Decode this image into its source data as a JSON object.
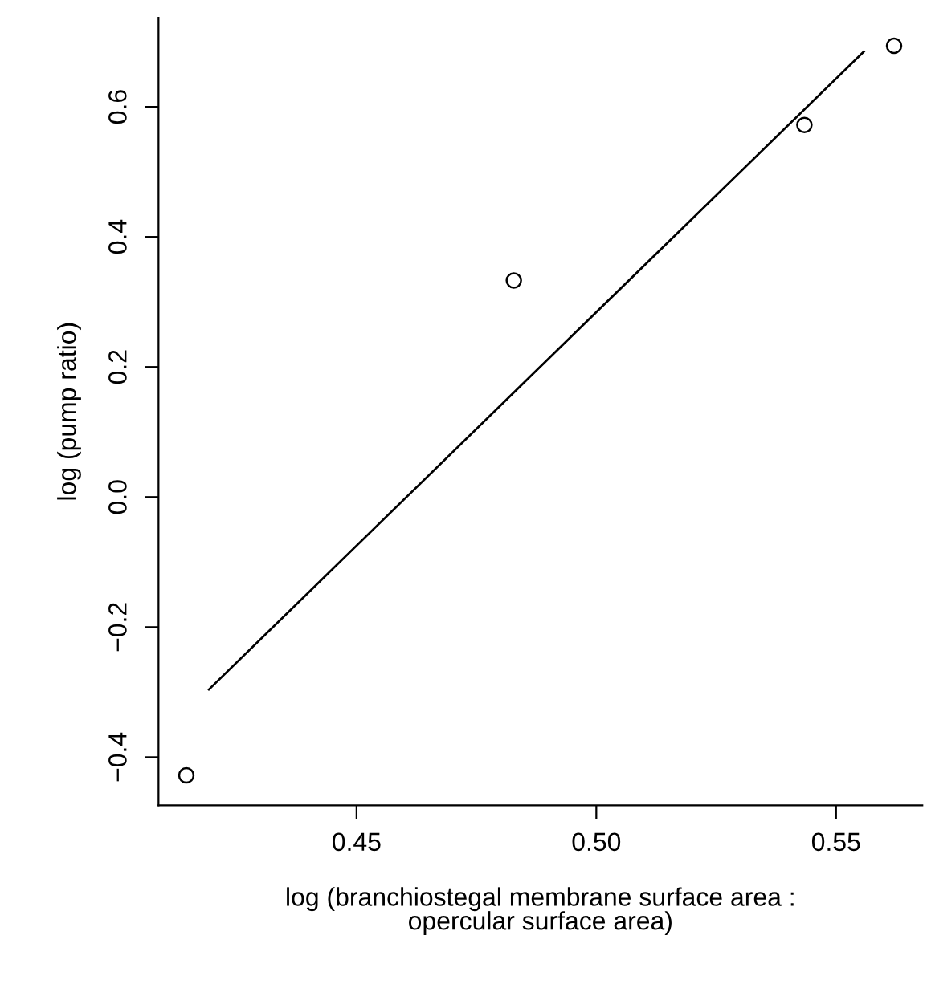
{
  "chart_data": {
    "type": "scatter",
    "xlabel": "log (branchiostegal membrane surface area :\nopercular surface area)",
    "ylabel": "log (pump ratio)",
    "grid": false,
    "legend": false,
    "xlim": [
      0.4087,
      0.568
    ],
    "ylim": [
      -0.474,
      0.737
    ],
    "xticks": [
      0.45,
      {
        "value": 0.5,
        "label": "0.50"
      },
      0.55
    ],
    "yticks": [
      -0.4,
      -0.2,
      {
        "value": 0,
        "label": "0.0"
      },
      0.2,
      0.4,
      0.6
    ],
    "series": [
      {
        "color": "#000000",
        "marker": "circle",
        "x": [
          0.4145,
          0.4828,
          0.5434,
          0.5621
        ],
        "values": [
          -0.428,
          0.333,
          0.572,
          0.694
        ]
      },
      {
        "type": "line",
        "color": "#000000",
        "line_style": "solid",
        "x": [
          0.4192,
          0.5558
        ],
        "values": [
          -0.296,
          0.685
        ]
      }
    ]
  }
}
